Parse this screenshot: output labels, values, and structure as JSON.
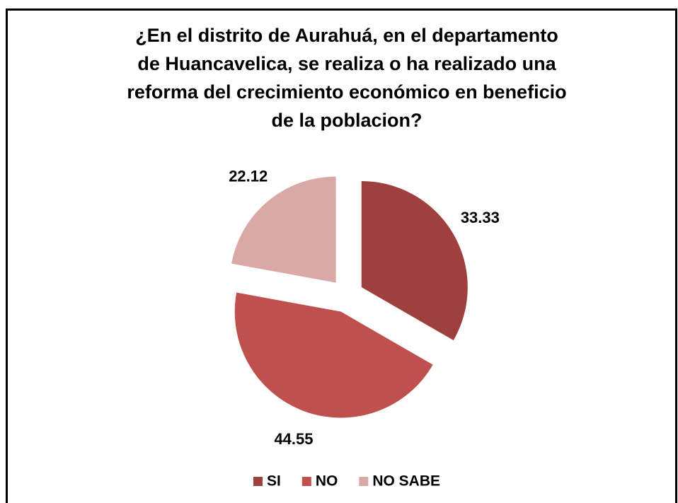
{
  "chart_data": {
    "type": "pie",
    "title": [
      "¿En el distrito de Aurahuá, en el departamento",
      "de Huancavelica, se realiza o ha realizado una",
      "reforma del crecimiento económico en beneficio",
      "de la poblacion?"
    ],
    "categories": [
      "SI",
      "NO",
      "NO SABE"
    ],
    "values": [
      33.33,
      44.55,
      22.12
    ],
    "colors": [
      "#9e413e",
      "#c0504d",
      "#d9a9a8"
    ],
    "legend": "bottom"
  }
}
